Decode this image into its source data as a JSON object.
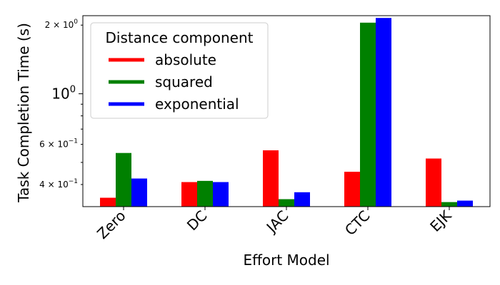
{
  "chart_data": {
    "type": "bar",
    "xlabel": "Effort Model",
    "ylabel": "Task Completion Time (s)",
    "yscale": "log",
    "ylim": [
      0.32,
      2.2
    ],
    "categories": [
      "Zero",
      "DC",
      "JAC",
      "CTC",
      "EJK"
    ],
    "legend": {
      "title": "Distance component",
      "placement": "upper left"
    },
    "series": [
      {
        "name": "absolute",
        "color": "#ff0000",
        "values": [
          0.35,
          0.41,
          0.565,
          0.455,
          0.52
        ]
      },
      {
        "name": "squared",
        "color": "#008000",
        "values": [
          0.55,
          0.415,
          0.345,
          2.05,
          0.335
        ]
      },
      {
        "name": "exponential",
        "color": "#0000ff",
        "values": [
          0.425,
          0.41,
          0.37,
          2.15,
          0.34
        ]
      }
    ],
    "y_tick_labels": [
      {
        "value": 0.4,
        "mantissa": "4",
        "exponent": "−1"
      },
      {
        "value": 0.6,
        "mantissa": "6",
        "exponent": "−1"
      },
      {
        "value": 1.0,
        "mantissa": "10",
        "exponent": "0"
      },
      {
        "value": 2.0,
        "mantissa": "2",
        "exponent": "0"
      }
    ]
  }
}
